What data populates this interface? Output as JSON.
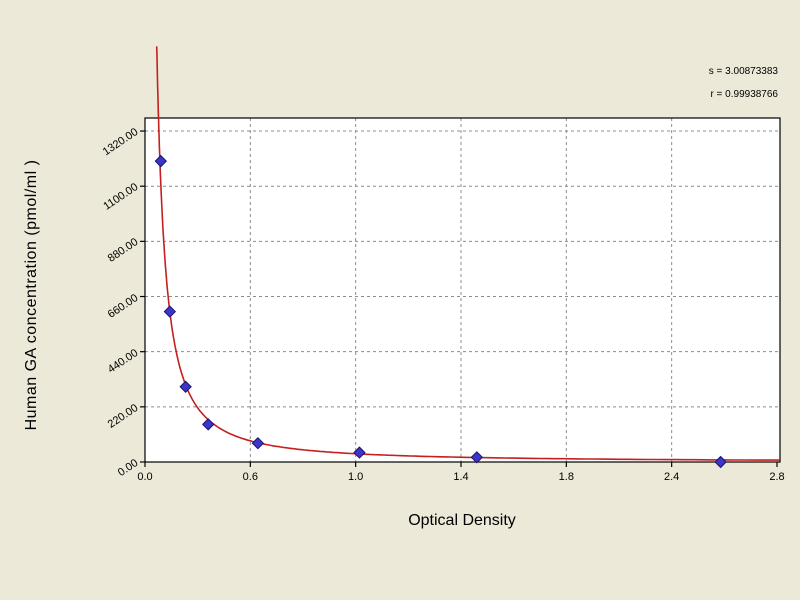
{
  "chart_data": {
    "type": "scatter",
    "title": "",
    "xlabel": "Optical Density",
    "ylabel": "Human GA concentration (pmol/ml )",
    "x_tick_labels": [
      "0.0",
      "0.6",
      "1.0",
      "1.4",
      "1.8",
      "2.4",
      "2.8"
    ],
    "y_tick_labels": [
      "0.00",
      "220.00",
      "440.00",
      "660.00",
      "880.00",
      "1100.00",
      "1320.00"
    ],
    "y_ticks": [
      0,
      220,
      440,
      660,
      880,
      1100,
      1320
    ],
    "xlim": [
      0,
      2.813
    ],
    "ylim": [
      0,
      1372
    ],
    "grid": "dashed",
    "legend": "none",
    "points": [
      {
        "x": 0.07,
        "y": 1200
      },
      {
        "x": 0.11,
        "y": 600
      },
      {
        "x": 0.18,
        "y": 300
      },
      {
        "x": 0.28,
        "y": 150
      },
      {
        "x": 0.5,
        "y": 75
      },
      {
        "x": 0.95,
        "y": 37.5
      },
      {
        "x": 1.47,
        "y": 18.75
      },
      {
        "x": 2.55,
        "y": 0
      }
    ],
    "curve_fit": {
      "type": "power",
      "a": 30,
      "b": -1.357,
      "x_start": 0.052,
      "x_end": 2.81
    },
    "annotation": {
      "line1": "s = 3.00873383",
      "line2": "r = 0.99938766"
    },
    "colors": {
      "curve": "#c42020",
      "marker": "#3c35c8",
      "marker_edge": "#1a1470",
      "background": "#ece9d8",
      "plot_background": "#ffffff",
      "grid": "#8c8c8c",
      "axis": "#000000"
    }
  }
}
